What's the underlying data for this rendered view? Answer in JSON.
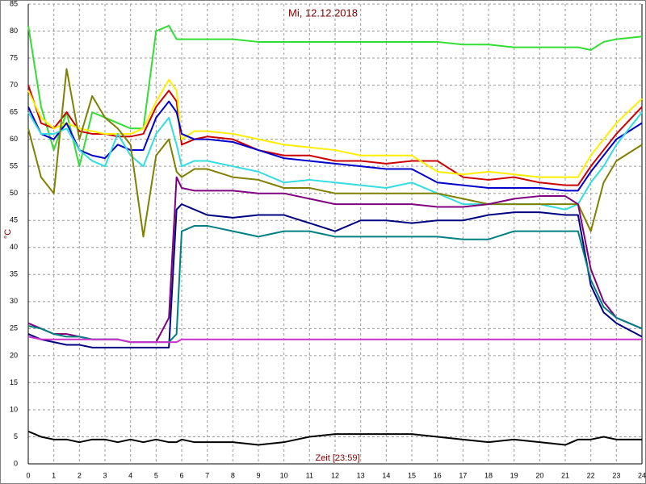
{
  "chart_data": {
    "type": "line",
    "title": "Mi, 12.12.2018",
    "xlabel": "Zeit [23:59]",
    "ylabel": "°C",
    "x": [
      0,
      0.5,
      1,
      1.5,
      2,
      2.5,
      3,
      3.5,
      4,
      4.5,
      5,
      5.5,
      5.8,
      6,
      6.5,
      7,
      8,
      9,
      10,
      11,
      12,
      13,
      14,
      15,
      16,
      17,
      18,
      19,
      20,
      21,
      21.5,
      22,
      22.5,
      23,
      24
    ],
    "xlim": [
      0,
      24
    ],
    "xticks": [
      0,
      1,
      2,
      3,
      4,
      5,
      6,
      7,
      8,
      9,
      10,
      11,
      12,
      13,
      14,
      15,
      16,
      17,
      18,
      19,
      20,
      21,
      22,
      23,
      24
    ],
    "ylim": [
      0,
      85
    ],
    "yticks": [
      0,
      5,
      10,
      15,
      20,
      25,
      30,
      35,
      40,
      45,
      50,
      55,
      60,
      65,
      70,
      75,
      80,
      85
    ],
    "grid": true,
    "series": [
      {
        "color": "#33dd33",
        "values": [
          81,
          66,
          58,
          65,
          55,
          65,
          64,
          63,
          62,
          62,
          80,
          81,
          78.5,
          78.5,
          78.5,
          78.5,
          78.5,
          78,
          78,
          78,
          78,
          78,
          78,
          78,
          78,
          77.5,
          77.5,
          77,
          77,
          77,
          77,
          76.5,
          78,
          78.5,
          79
        ]
      },
      {
        "color": "#cc0000",
        "values": [
          70,
          63,
          62,
          65,
          61.5,
          61,
          61,
          60.5,
          60.5,
          61,
          66,
          69,
          67,
          59,
          60,
          60.5,
          60,
          58,
          57,
          57,
          56,
          56,
          55.5,
          56,
          56,
          53,
          52.5,
          53,
          52,
          51.5,
          51.5,
          55,
          58,
          61,
          66
        ]
      },
      {
        "color": "#ffee00",
        "values": [
          69,
          64,
          62,
          63,
          62,
          61.5,
          61,
          61,
          61,
          62,
          67,
          71,
          69,
          60,
          61.5,
          61.5,
          61,
          60,
          59,
          58.5,
          58,
          57,
          57,
          57,
          54,
          53.5,
          54,
          53.5,
          53,
          53,
          53,
          57,
          60,
          63,
          67.5
        ]
      },
      {
        "color": "#0000cc",
        "values": [
          66,
          61,
          60,
          63,
          58,
          57,
          56.5,
          59,
          58,
          58,
          64,
          67,
          65,
          61,
          60,
          60,
          59.5,
          58,
          56.5,
          56,
          55.5,
          55,
          54.5,
          54.5,
          52,
          51.5,
          51,
          51,
          51,
          50.5,
          50.5,
          54,
          57,
          60,
          63
        ]
      },
      {
        "color": "#33dddd",
        "values": [
          65,
          61,
          61,
          62,
          58,
          56,
          55,
          61,
          57,
          55,
          61,
          64,
          59,
          55,
          56,
          56,
          55,
          54,
          52,
          52.5,
          52,
          51.5,
          51,
          52,
          50,
          48,
          48,
          48,
          48,
          47,
          48,
          52,
          55,
          59,
          65
        ]
      },
      {
        "color": "#808000",
        "values": [
          62,
          53,
          50,
          73,
          60,
          68,
          64,
          62,
          59,
          42,
          57,
          60,
          54,
          53,
          54.5,
          54.5,
          53,
          52.5,
          51,
          51,
          50,
          50,
          50,
          50,
          50,
          49,
          48,
          48,
          48,
          48,
          48,
          43,
          52,
          56,
          59
        ]
      },
      {
        "color": "#800080",
        "values": [
          26,
          25,
          24,
          24,
          23.5,
          23,
          23,
          23,
          22.5,
          22.5,
          22.5,
          27,
          53,
          51,
          50.5,
          50.5,
          50.5,
          50,
          50,
          49,
          48,
          48,
          48,
          48,
          47.5,
          47.5,
          48,
          49,
          49.5,
          49.5,
          48,
          36,
          30,
          27,
          25
        ]
      },
      {
        "color": "#000080",
        "values": [
          24,
          23,
          22.5,
          22,
          22,
          21.5,
          21.5,
          21.5,
          21.5,
          21.5,
          21.5,
          21.5,
          47,
          48,
          47,
          46,
          45.5,
          46,
          46,
          44.5,
          43,
          45,
          45,
          44.5,
          45,
          45,
          46,
          46.5,
          46.5,
          46,
          46,
          33,
          28,
          26,
          23.5
        ]
      },
      {
        "color": "#008080",
        "values": [
          25.5,
          25,
          24,
          23.5,
          23.5,
          23,
          23,
          23,
          22.5,
          22.5,
          22.5,
          22.5,
          24,
          43,
          44,
          44,
          43,
          42,
          43,
          43,
          42,
          42,
          42,
          42,
          42,
          41.5,
          41.5,
          43,
          43,
          43,
          43,
          34,
          29,
          27,
          25
        ]
      },
      {
        "color": "#cc33cc",
        "values": [
          23.5,
          23,
          23,
          23,
          23,
          23,
          23,
          23,
          22.5,
          22.5,
          22.5,
          22.5,
          22.5,
          23,
          23,
          23,
          23,
          23,
          23,
          23,
          23,
          23,
          23,
          23,
          23,
          23,
          23,
          23,
          23,
          23,
          23,
          23,
          23,
          23,
          23
        ]
      },
      {
        "color": "#000000",
        "values": [
          6,
          5,
          4.5,
          4.5,
          4,
          4.5,
          4.5,
          4,
          4.5,
          4,
          4.5,
          4,
          4,
          4.5,
          4,
          4,
          4,
          3.5,
          4,
          5,
          5.5,
          5.5,
          5.5,
          5.5,
          5,
          4.5,
          4,
          4.5,
          4,
          3.5,
          4.5,
          4.5,
          5,
          4.5,
          4.5
        ]
      }
    ]
  }
}
